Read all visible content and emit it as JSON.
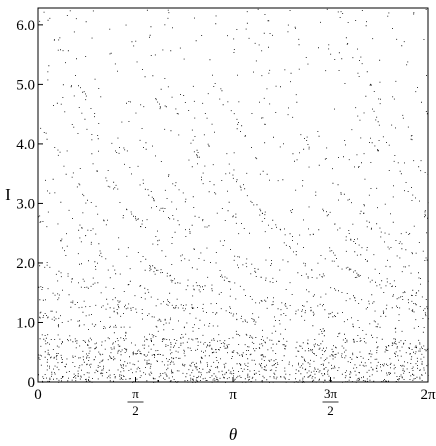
{
  "chart_data": {
    "type": "scatter",
    "title": "",
    "xlabel": "θ",
    "ylabel": "I",
    "xlim": [
      0,
      6.2832
    ],
    "ylim": [
      0,
      6.2832
    ],
    "grid": false,
    "point_color": "#000000",
    "x_ticks": [
      {
        "value": 0,
        "label": "0"
      },
      {
        "value": 1.5708,
        "num": "π",
        "den": "2"
      },
      {
        "value": 3.1416,
        "label": "π"
      },
      {
        "value": 4.7124,
        "num": "3π",
        "den": "2"
      },
      {
        "value": 6.2832,
        "label": "2π"
      }
    ],
    "y_ticks": [
      {
        "value": 0,
        "label": "0"
      },
      {
        "value": 1.0,
        "label": "1.0"
      },
      {
        "value": 2.0,
        "label": "2.0"
      },
      {
        "value": 3.0,
        "label": "3.0"
      },
      {
        "value": 4.0,
        "label": "4.0"
      },
      {
        "value": 5.0,
        "label": "5.0"
      },
      {
        "value": 6.0,
        "label": "6.0"
      }
    ],
    "series": [
      {
        "description": "chaotic orbit points of an area-preserving map; dense band near I < 0.8, curved chaotic bands decreasing in I as θ increases",
        "band_families": [
          {
            "shift": 0.0,
            "i0": 6.6,
            "decay": 0.55
          },
          {
            "shift": 1.5708,
            "i0": 6.6,
            "decay": 0.55
          },
          {
            "shift": 3.1416,
            "i0": 6.6,
            "decay": 0.55
          },
          {
            "shift": 4.7124,
            "i0": 6.6,
            "decay": 0.55
          }
        ],
        "dense_band_top": 0.75,
        "n_points": 16000
      }
    ]
  }
}
